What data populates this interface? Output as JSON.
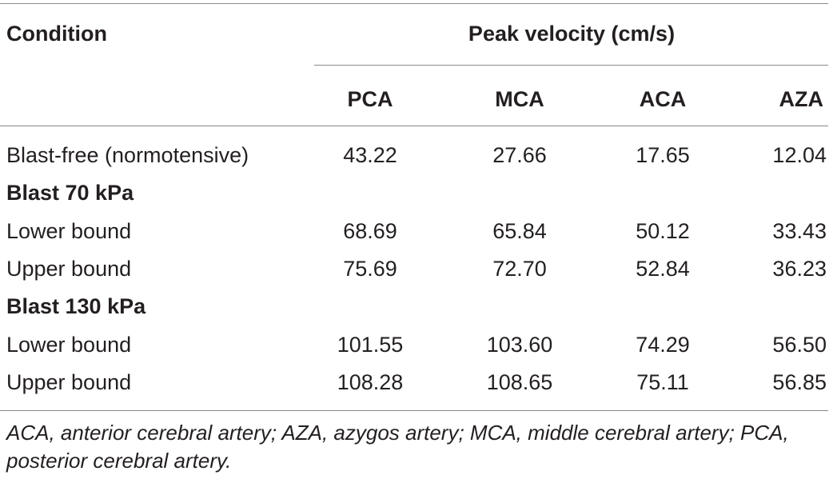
{
  "table": {
    "header": {
      "condition_label": "Condition",
      "group_label": "Peak velocity (cm/s)",
      "columns": [
        "PCA",
        "MCA",
        "ACA",
        "AZA"
      ]
    },
    "rows": [
      {
        "type": "data",
        "label": "Blast-free (normotensive)",
        "values": [
          "43.22",
          "27.66",
          "17.65",
          "12.04"
        ]
      },
      {
        "type": "group",
        "label": "Blast 70 kPa"
      },
      {
        "type": "data",
        "label": "Lower bound",
        "values": [
          "68.69",
          "65.84",
          "50.12",
          "33.43"
        ]
      },
      {
        "type": "data",
        "label": "Upper bound",
        "values": [
          "75.69",
          "72.70",
          "52.84",
          "36.23"
        ]
      },
      {
        "type": "group",
        "label": "Blast 130 kPa"
      },
      {
        "type": "data",
        "label": "Lower bound",
        "values": [
          "101.55",
          "103.60",
          "74.29",
          "56.50"
        ]
      },
      {
        "type": "data",
        "label": "Upper bound",
        "values": [
          "108.28",
          "108.65",
          "75.11",
          "56.85"
        ]
      }
    ],
    "footnote": "ACA, anterior cerebral artery; AZA, azygos artery; MCA, middle cerebral artery; PCA, posterior cerebral artery."
  }
}
